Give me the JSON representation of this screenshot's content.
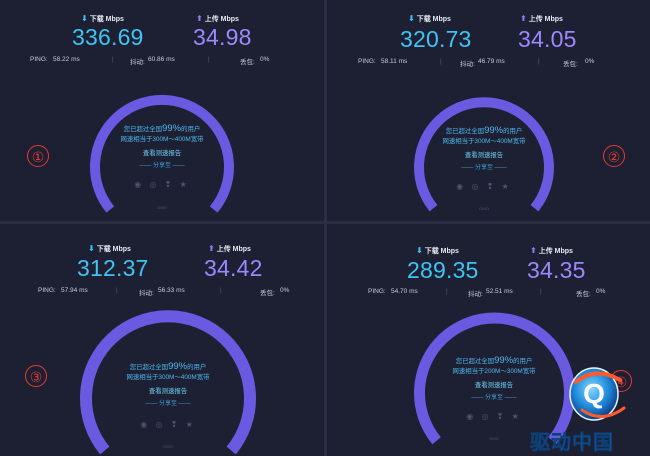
{
  "common": {
    "download_label": "下载 Mbps",
    "upload_label": "上传 Mbps",
    "ping_label": "PING:",
    "jitter_label": "抖动:",
    "loss_label": "丢包:",
    "surpass_prefix": "您已超过全国",
    "surpass_pct": "99%",
    "surpass_suffix": "的用户",
    "report_link": "查看测速报告",
    "share_label": "—— 分享至 ——",
    "share_icons": "◉ ◎ ❢ ★",
    "gauge_brand": "OWO",
    "separator": "|"
  },
  "results": [
    {
      "marker": "①",
      "download": "336.69",
      "upload": "34.98",
      "ping": "58.22 ms",
      "jitter": "60.86 ms",
      "loss": "0%",
      "equiv": "网速相当于300M～400M宽带"
    },
    {
      "marker": "②",
      "download": "320.73",
      "upload": "34.05",
      "ping": "58.11 ms",
      "jitter": "46.79 ms",
      "loss": "0%",
      "equiv": "网速相当于300M～400M宽带"
    },
    {
      "marker": "③",
      "download": "312.37",
      "upload": "34.42",
      "ping": "57.94 ms",
      "jitter": "56.33 ms",
      "loss": "0%",
      "equiv": "网速相当于300M～400M宽带"
    },
    {
      "marker": "④",
      "download": "289.35",
      "upload": "34.35",
      "ping": "54.70 ms",
      "jitter": "52.51 ms",
      "loss": "0%",
      "equiv": "网速相当于200M～300M宽带"
    }
  ],
  "watermark": {
    "text": "驱动中国",
    "logo_letter": "Q"
  }
}
